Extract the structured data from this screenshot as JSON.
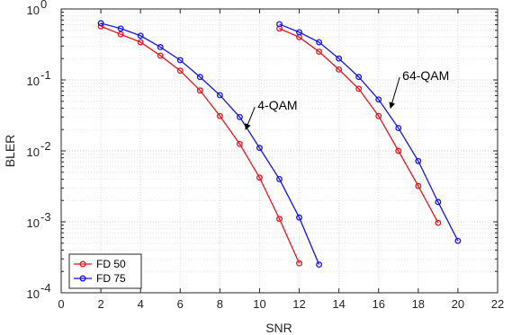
{
  "chart_data": {
    "type": "line",
    "title": "",
    "xlabel": "SNR",
    "ylabel": "BLER",
    "xlim": [
      0,
      22
    ],
    "ylim": [
      0.0001,
      1
    ],
    "yscale": "log",
    "xticks": [
      "0",
      "2",
      "4",
      "6",
      "8",
      "10",
      "12",
      "14",
      "16",
      "18",
      "20",
      "22"
    ],
    "yticks": [
      {
        "base": "10",
        "exp": "-4"
      },
      {
        "base": "10",
        "exp": "-3"
      },
      {
        "base": "10",
        "exp": "-2"
      },
      {
        "base": "10",
        "exp": "-1"
      },
      {
        "base": "10",
        "exp": "0"
      }
    ],
    "grid": true,
    "legend": "bottom-left",
    "series": [
      {
        "name": "FD 50",
        "color": "#e8141e",
        "groups": [
          {
            "x": [
              2,
              3,
              4,
              5,
              6,
              7,
              8,
              9,
              10,
              11,
              12
            ],
            "y": [
              0.57,
              0.44,
              0.34,
              0.22,
              0.135,
              0.071,
              0.031,
              0.0125,
              0.0042,
              0.0011,
              0.00026
            ]
          },
          {
            "x": [
              11,
              12,
              13,
              14,
              15,
              16,
              17,
              18,
              19
            ],
            "y": [
              0.53,
              0.4,
              0.25,
              0.14,
              0.075,
              0.031,
              0.01,
              0.0032,
              0.00097
            ]
          }
        ]
      },
      {
        "name": "FD 75",
        "color": "#1414e6",
        "groups": [
          {
            "x": [
              2,
              3,
              4,
              5,
              6,
              7,
              8,
              9,
              10,
              11,
              12,
              13
            ],
            "y": [
              0.63,
              0.53,
              0.42,
              0.29,
              0.19,
              0.11,
              0.061,
              0.03,
              0.011,
              0.004,
              0.00115,
              0.00025
            ]
          },
          {
            "x": [
              11,
              12,
              13,
              14,
              15,
              16,
              17,
              18,
              19,
              20
            ],
            "y": [
              0.61,
              0.47,
              0.34,
              0.2,
              0.11,
              0.053,
              0.021,
              0.0072,
              0.0019,
              0.00054
            ]
          }
        ]
      }
    ],
    "annotations": [
      {
        "text": "4-QAM",
        "text_x": 9.9,
        "text_y": 0.038,
        "arrow_to_x": 9.3,
        "arrow_to_y": 0.02
      },
      {
        "text": "64-QAM",
        "text_x": 17.2,
        "text_y": 0.1,
        "arrow_to_x": 16.6,
        "arrow_to_y": 0.04
      }
    ]
  }
}
